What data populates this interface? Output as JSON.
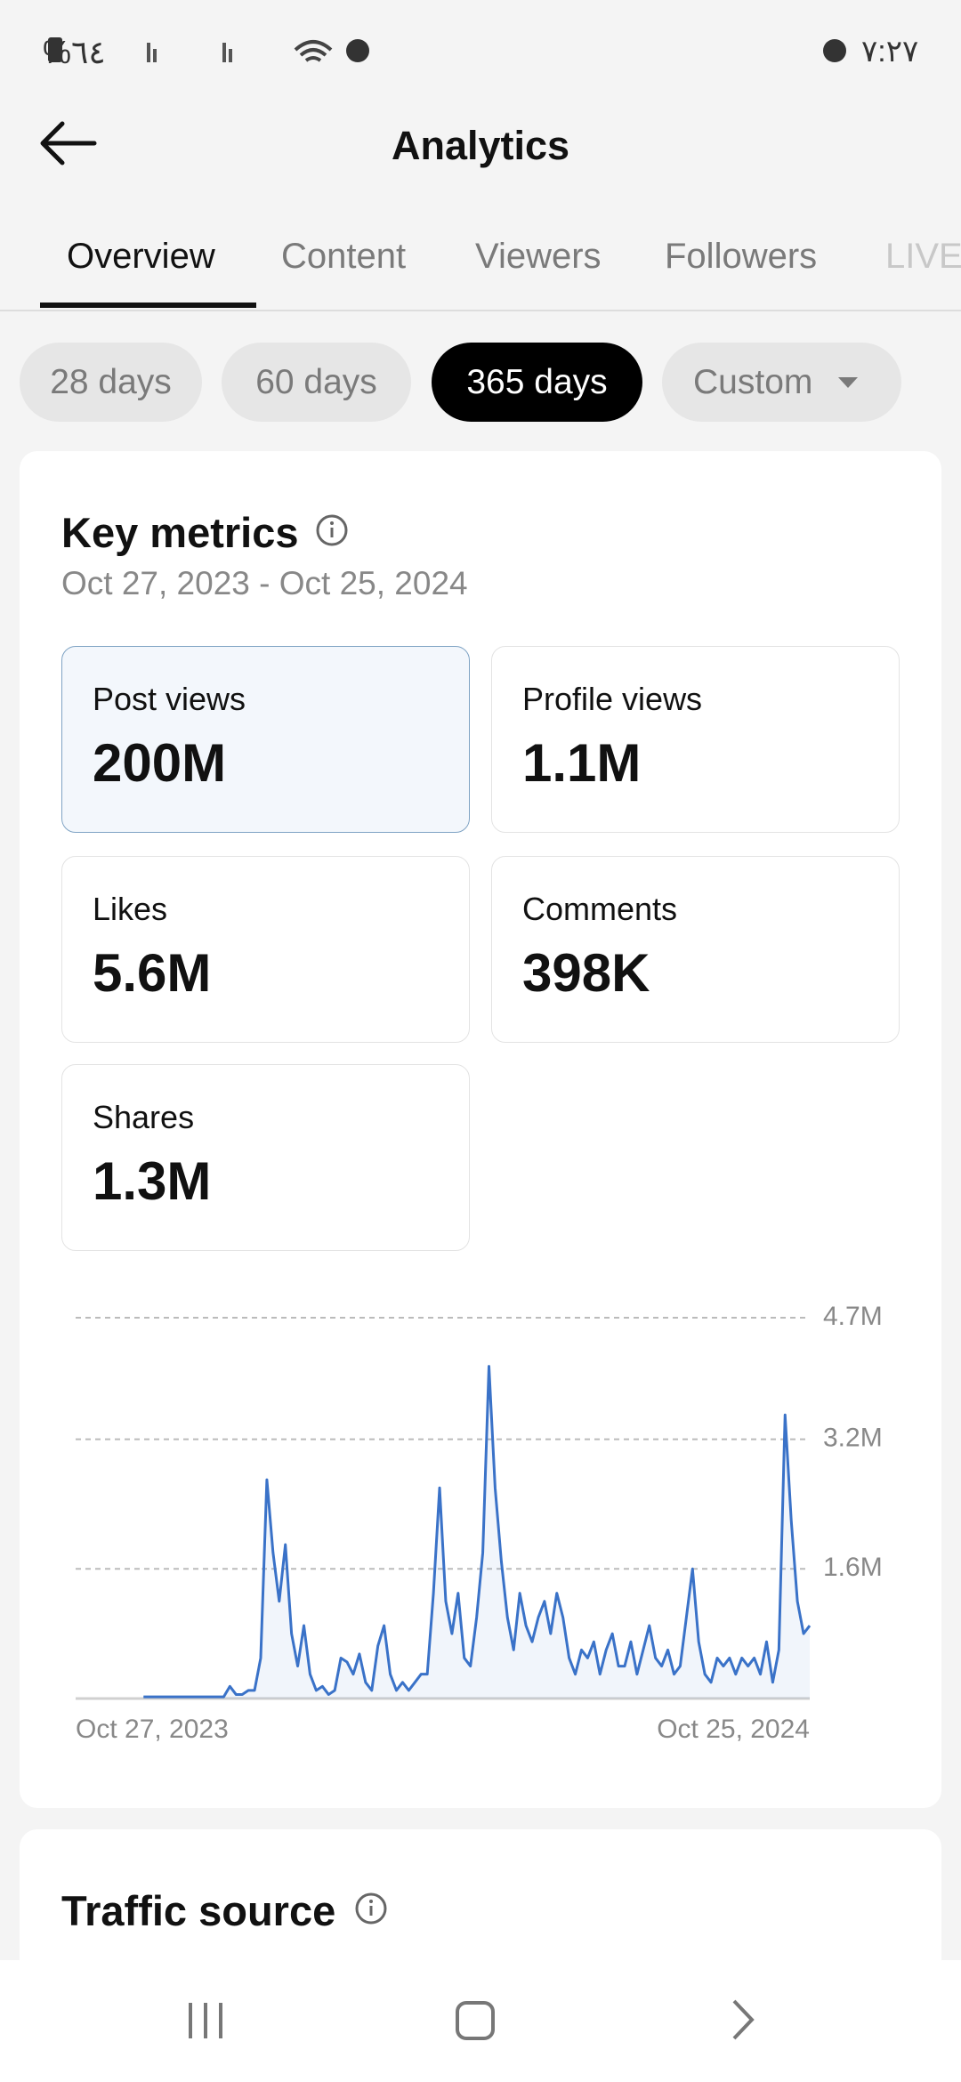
{
  "status_bar": {
    "battery": "%٦٤",
    "time": "٧:٢٧"
  },
  "header": {
    "title": "Analytics"
  },
  "tabs": [
    "Overview",
    "Content",
    "Viewers",
    "Followers",
    "LIVE"
  ],
  "ranges": [
    "28 days",
    "60 days",
    "365 days",
    "Custom"
  ],
  "key_metrics": {
    "title": "Key metrics",
    "date_range": "Oct 27, 2023 - Oct 25, 2024",
    "metrics": [
      {
        "label": "Post views",
        "value": "200M"
      },
      {
        "label": "Profile views",
        "value": "1.1M"
      },
      {
        "label": "Likes",
        "value": "5.6M"
      },
      {
        "label": "Comments",
        "value": "398K"
      },
      {
        "label": "Shares",
        "value": "1.3M"
      }
    ]
  },
  "chart_data": {
    "type": "line",
    "color": "#3a72c8",
    "grid": true,
    "ylim": [
      0,
      4.7
    ],
    "yticks": [
      {
        "value": 1.6,
        "label": "1.6M"
      },
      {
        "value": 3.2,
        "label": "3.2M"
      },
      {
        "value": 4.7,
        "label": "4.7M"
      }
    ],
    "xlim": [
      0,
      119
    ],
    "xticks": [
      {
        "value": 0,
        "label": "Oct 27, 2023"
      },
      {
        "value": 119,
        "label": "Oct 25, 2024"
      }
    ],
    "values": [
      null,
      null,
      null,
      null,
      null,
      null,
      null,
      null,
      null,
      null,
      null,
      0.02,
      0.02,
      0.02,
      0.02,
      0.02,
      0.02,
      0.02,
      0.02,
      0.02,
      0.02,
      0.02,
      0.02,
      0.02,
      0.02,
      0.15,
      0.05,
      0.05,
      0.1,
      0.1,
      0.5,
      2.7,
      1.8,
      1.2,
      1.9,
      0.8,
      0.4,
      0.9,
      0.3,
      0.1,
      0.15,
      0.05,
      0.1,
      0.5,
      0.45,
      0.3,
      0.55,
      0.2,
      0.1,
      0.65,
      0.9,
      0.3,
      0.1,
      0.2,
      0.1,
      0.2,
      0.3,
      0.3,
      1.3,
      2.6,
      1.2,
      0.8,
      1.3,
      0.5,
      0.4,
      1.0,
      1.8,
      4.1,
      2.6,
      1.7,
      1.0,
      0.6,
      1.3,
      0.9,
      0.7,
      1.0,
      1.2,
      0.8,
      1.3,
      1.0,
      0.5,
      0.3,
      0.6,
      0.5,
      0.7,
      0.3,
      0.6,
      0.8,
      0.4,
      0.4,
      0.7,
      0.3,
      0.6,
      0.9,
      0.5,
      0.4,
      0.6,
      0.3,
      0.4,
      1.0,
      1.6,
      0.7,
      0.3,
      0.2,
      0.5,
      0.4,
      0.5,
      0.3,
      0.5,
      0.4,
      0.5,
      0.3,
      0.7,
      0.2,
      0.6,
      3.5,
      2.2,
      1.2,
      0.8,
      0.9
    ]
  },
  "traffic_source": {
    "title": "Traffic source"
  }
}
